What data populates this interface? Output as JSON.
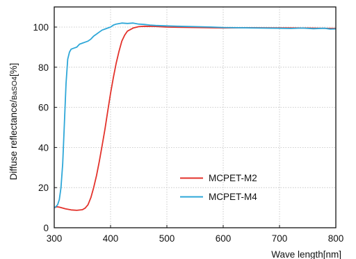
{
  "chart_data": {
    "type": "line",
    "xlabel": "Wave length[nm]",
    "ylabel_main": "Diffuse reflectance/",
    "ylabel_sub": "BaSO4",
    "ylabel_unit": "[%]",
    "xlim": [
      300,
      800
    ],
    "ylim": [
      0,
      105
    ],
    "xticks": [
      300,
      400,
      500,
      600,
      700,
      800
    ],
    "yticks": [
      0,
      20,
      40,
      60,
      80,
      100
    ],
    "grid": true,
    "legend_position": "lower-right",
    "series": [
      {
        "name": "MCPET-M2",
        "color": "#e3322b",
        "x": [
          300,
          305,
          310,
          320,
          330,
          340,
          350,
          355,
          360,
          365,
          370,
          375,
          380,
          385,
          390,
          395,
          400,
          405,
          410,
          415,
          420,
          425,
          430,
          440,
          450,
          460,
          480,
          500,
          550,
          600,
          650,
          700,
          750,
          800
        ],
        "y": [
          10,
          10.5,
          10.2,
          9.4,
          8.9,
          8.7,
          9.0,
          9.8,
          11.5,
          15,
          20,
          26,
          33,
          41,
          49,
          58,
          67,
          75,
          82,
          88,
          93,
          96,
          98,
          99.5,
          100.2,
          100.4,
          100.3,
          100.0,
          99.8,
          99.6,
          99.7,
          99.6,
          99.5,
          99.3
        ]
      },
      {
        "name": "MCPET-M4",
        "color": "#2ea7d8",
        "x": [
          300,
          303,
          306,
          309,
          312,
          315,
          318,
          321,
          324,
          327,
          330,
          335,
          340,
          345,
          350,
          355,
          360,
          365,
          370,
          375,
          380,
          385,
          390,
          395,
          400,
          405,
          410,
          420,
          430,
          440,
          450,
          460,
          470,
          480,
          500,
          520,
          550,
          580,
          600,
          650,
          700,
          720,
          740,
          760,
          780,
          790,
          800
        ],
        "y": [
          10,
          10.5,
          11.5,
          14,
          20,
          32,
          52,
          72,
          84,
          87.5,
          89,
          89.5,
          90,
          91.5,
          92,
          92.5,
          93,
          94,
          95.5,
          96.5,
          97.5,
          98.5,
          99,
          99.5,
          100,
          101,
          101.5,
          102,
          101.8,
          102,
          101.5,
          101.3,
          101,
          100.8,
          100.6,
          100.4,
          100.2,
          100,
          99.8,
          99.6,
          99.4,
          99.3,
          99.5,
          99.2,
          99.4,
          99.0,
          99.1
        ]
      }
    ]
  }
}
